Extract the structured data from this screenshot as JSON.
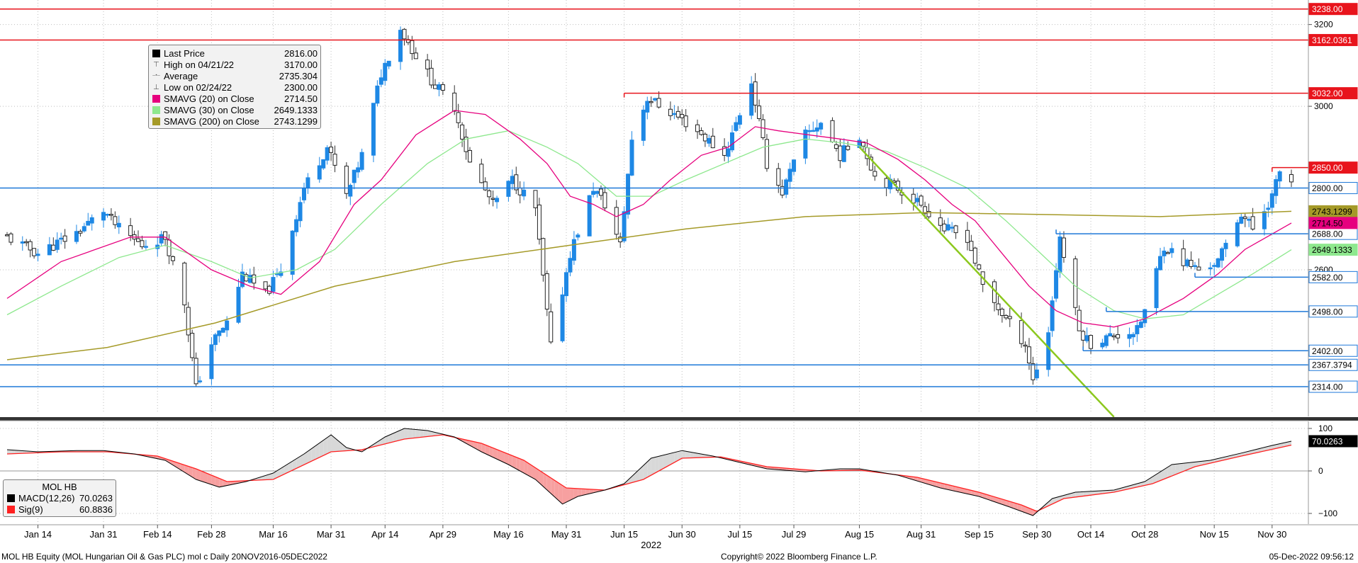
{
  "colors": {
    "bullish": "#1e88e5",
    "bearish_outline": "#222222",
    "sma20": "#e6007e",
    "sma30": "#8ee88e",
    "sma200": "#a59a28",
    "resistance": "#e8141c",
    "support": "#1e78d8",
    "trendline": "#8cc81e",
    "macd": "#000000",
    "signal": "#ff2020",
    "fill_up": "#d8d8d8",
    "fill_down": "#f7a0a0"
  },
  "chart_data": [
    {
      "type": "candlestick",
      "panel": "price",
      "ylim": [
        2250,
        3260
      ],
      "x_range": [
        "2022-01-06",
        "2022-12-05"
      ],
      "x_tick_labels": [
        "Jan 14",
        "Jan 31",
        "Feb 14",
        "Feb 28",
        "Mar 16",
        "Mar 31",
        "Apr 14",
        "Apr 29",
        "May 16",
        "May 31",
        "Jun 15",
        "Jun 30",
        "Jul 15",
        "Jul 29",
        "Aug 15",
        "Aug 31",
        "Sep 15",
        "Sep 30",
        "Oct 14",
        "Oct 28",
        "Nov 15",
        "Nov 30"
      ],
      "x_tick_dates": [
        "2022-01-14",
        "2022-01-31",
        "2022-02-14",
        "2022-02-28",
        "2022-03-16",
        "2022-03-31",
        "2022-04-14",
        "2022-04-29",
        "2022-05-16",
        "2022-05-31",
        "2022-06-15",
        "2022-06-30",
        "2022-07-15",
        "2022-07-29",
        "2022-08-15",
        "2022-08-31",
        "2022-09-15",
        "2022-09-30",
        "2022-10-14",
        "2022-10-28",
        "2022-11-15",
        "2022-11-30"
      ],
      "year_label": "2022",
      "y_tick_values": [
        3200,
        3000,
        2600
      ],
      "y_tick_labels": [
        "3200",
        "3000",
        "2600"
      ],
      "close_anchors": [
        [
          "2022-01-06",
          2680
        ],
        [
          "2022-01-14",
          2640
        ],
        [
          "2022-01-24",
          2690
        ],
        [
          "2022-01-31",
          2745
        ],
        [
          "2022-02-04",
          2700
        ],
        [
          "2022-02-10",
          2660
        ],
        [
          "2022-02-16",
          2680
        ],
        [
          "2022-02-21",
          2520
        ],
        [
          "2022-02-24",
          2310
        ],
        [
          "2022-02-28",
          2420
        ],
        [
          "2022-03-04",
          2470
        ],
        [
          "2022-03-08",
          2590
        ],
        [
          "2022-03-14",
          2540
        ],
        [
          "2022-03-18",
          2600
        ],
        [
          "2022-03-24",
          2800
        ],
        [
          "2022-03-30",
          2900
        ],
        [
          "2022-04-04",
          2780
        ],
        [
          "2022-04-08",
          2880
        ],
        [
          "2022-04-13",
          3080
        ],
        [
          "2022-04-18",
          3190
        ],
        [
          "2022-04-21",
          3140
        ],
        [
          "2022-04-27",
          3050
        ],
        [
          "2022-05-02",
          3000
        ],
        [
          "2022-05-06",
          2860
        ],
        [
          "2022-05-12",
          2760
        ],
        [
          "2022-05-17",
          2820
        ],
        [
          "2022-05-23",
          2750
        ],
        [
          "2022-05-27",
          2410
        ],
        [
          "2022-06-01",
          2640
        ],
        [
          "2022-06-07",
          2800
        ],
        [
          "2022-06-10",
          2760
        ],
        [
          "2022-06-14",
          2660
        ],
        [
          "2022-06-17",
          2920
        ],
        [
          "2022-06-21",
          3020
        ],
        [
          "2022-06-28",
          2980
        ],
        [
          "2022-07-04",
          2940
        ],
        [
          "2022-07-11",
          2880
        ],
        [
          "2022-07-18",
          3060
        ],
        [
          "2022-07-22",
          2860
        ],
        [
          "2022-07-26",
          2790
        ],
        [
          "2022-08-01",
          2930
        ],
        [
          "2022-08-05",
          2960
        ],
        [
          "2022-08-10",
          2880
        ],
        [
          "2022-08-15",
          2930
        ],
        [
          "2022-08-19",
          2830
        ],
        [
          "2022-08-25",
          2800
        ],
        [
          "2022-08-31",
          2760
        ],
        [
          "2022-09-06",
          2700
        ],
        [
          "2022-09-12",
          2680
        ],
        [
          "2022-09-16",
          2560
        ],
        [
          "2022-09-22",
          2480
        ],
        [
          "2022-09-27",
          2420
        ],
        [
          "2022-09-29",
          2330
        ],
        [
          "2022-10-03",
          2450
        ],
        [
          "2022-10-06",
          2680
        ],
        [
          "2022-10-11",
          2450
        ],
        [
          "2022-10-14",
          2420
        ],
        [
          "2022-10-20",
          2440
        ],
        [
          "2022-10-26",
          2450
        ],
        [
          "2022-10-28",
          2500
        ],
        [
          "2022-11-02",
          2660
        ],
        [
          "2022-11-07",
          2620
        ],
        [
          "2022-11-11",
          2600
        ],
        [
          "2022-11-16",
          2620
        ],
        [
          "2022-11-22",
          2740
        ],
        [
          "2022-11-25",
          2700
        ],
        [
          "2022-11-30",
          2780
        ],
        [
          "2022-12-02",
          2840
        ],
        [
          "2022-12-05",
          2816
        ]
      ],
      "sma20": [
        [
          "2022-01-06",
          2530
        ],
        [
          "2022-01-20",
          2620
        ],
        [
          "2022-02-07",
          2680
        ],
        [
          "2022-02-16",
          2680
        ],
        [
          "2022-02-28",
          2600
        ],
        [
          "2022-03-10",
          2560
        ],
        [
          "2022-03-18",
          2540
        ],
        [
          "2022-03-28",
          2620
        ],
        [
          "2022-04-06",
          2760
        ],
        [
          "2022-04-13",
          2820
        ],
        [
          "2022-04-22",
          2930
        ],
        [
          "2022-05-02",
          2990
        ],
        [
          "2022-05-10",
          2980
        ],
        [
          "2022-05-19",
          2920
        ],
        [
          "2022-05-26",
          2860
        ],
        [
          "2022-06-01",
          2780
        ],
        [
          "2022-06-07",
          2760
        ],
        [
          "2022-06-13",
          2730
        ],
        [
          "2022-06-20",
          2760
        ],
        [
          "2022-06-27",
          2820
        ],
        [
          "2022-07-05",
          2880
        ],
        [
          "2022-07-12",
          2900
        ],
        [
          "2022-07-19",
          2950
        ],
        [
          "2022-07-25",
          2940
        ],
        [
          "2022-08-02",
          2930
        ],
        [
          "2022-08-10",
          2920
        ],
        [
          "2022-08-17",
          2910
        ],
        [
          "2022-08-25",
          2870
        ],
        [
          "2022-09-01",
          2820
        ],
        [
          "2022-09-08",
          2760
        ],
        [
          "2022-09-14",
          2720
        ],
        [
          "2022-09-21",
          2640
        ],
        [
          "2022-09-28",
          2560
        ],
        [
          "2022-10-05",
          2500
        ],
        [
          "2022-10-12",
          2470
        ],
        [
          "2022-10-20",
          2460
        ],
        [
          "2022-10-28",
          2480
        ],
        [
          "2022-11-07",
          2530
        ],
        [
          "2022-11-16",
          2590
        ],
        [
          "2022-11-23",
          2650
        ],
        [
          "2022-12-05",
          2714.5
        ]
      ],
      "sma30": [
        [
          "2022-01-06",
          2490
        ],
        [
          "2022-01-20",
          2560
        ],
        [
          "2022-02-04",
          2630
        ],
        [
          "2022-02-16",
          2660
        ],
        [
          "2022-02-28",
          2620
        ],
        [
          "2022-03-10",
          2580
        ],
        [
          "2022-03-22",
          2600
        ],
        [
          "2022-04-01",
          2650
        ],
        [
          "2022-04-13",
          2760
        ],
        [
          "2022-04-25",
          2860
        ],
        [
          "2022-05-05",
          2920
        ],
        [
          "2022-05-16",
          2940
        ],
        [
          "2022-05-26",
          2900
        ],
        [
          "2022-06-03",
          2860
        ],
        [
          "2022-06-13",
          2780
        ],
        [
          "2022-06-22",
          2780
        ],
        [
          "2022-07-01",
          2820
        ],
        [
          "2022-07-11",
          2860
        ],
        [
          "2022-07-21",
          2900
        ],
        [
          "2022-08-01",
          2920
        ],
        [
          "2022-08-11",
          2910
        ],
        [
          "2022-08-22",
          2890
        ],
        [
          "2022-09-01",
          2850
        ],
        [
          "2022-09-12",
          2800
        ],
        [
          "2022-09-22",
          2720
        ],
        [
          "2022-10-01",
          2640
        ],
        [
          "2022-10-10",
          2560
        ],
        [
          "2022-10-20",
          2500
        ],
        [
          "2022-10-28",
          2480
        ],
        [
          "2022-11-07",
          2490
        ],
        [
          "2022-11-16",
          2540
        ],
        [
          "2022-11-25",
          2590
        ],
        [
          "2022-12-05",
          2649.1333
        ]
      ],
      "sma200": [
        [
          "2022-01-06",
          2380
        ],
        [
          "2022-02-01",
          2410
        ],
        [
          "2022-03-01",
          2470
        ],
        [
          "2022-04-01",
          2560
        ],
        [
          "2022-05-02",
          2620
        ],
        [
          "2022-06-01",
          2660
        ],
        [
          "2022-07-01",
          2700
        ],
        [
          "2022-08-01",
          2730
        ],
        [
          "2022-09-01",
          2740
        ],
        [
          "2022-10-03",
          2735
        ],
        [
          "2022-11-01",
          2730
        ],
        [
          "2022-12-05",
          2743.1299
        ]
      ],
      "resistance_levels": [
        {
          "value": 3238.0,
          "label": "3238.00"
        },
        {
          "value": 3162.0361,
          "label": "3162.0361"
        },
        {
          "value": 3032.0,
          "label": "3032.00"
        },
        {
          "value": 2850.0,
          "label": "2850.00"
        }
      ],
      "support_levels": [
        {
          "value": 2800.0,
          "label": "2800.00"
        },
        {
          "value": 2688.0,
          "label": "2688.00"
        },
        {
          "value": 2582.0,
          "label": "2582.00"
        },
        {
          "value": 2498.0,
          "label": "2498.00"
        },
        {
          "value": 2402.0,
          "label": "2402.00"
        },
        {
          "value": 2367.3794,
          "label": "2367.3794"
        },
        {
          "value": 2314.0,
          "label": "2314.00"
        }
      ],
      "indicator_value_labels": [
        {
          "series": "sma200",
          "value": 2743.1299,
          "label": "2743.1299"
        },
        {
          "series": "sma20",
          "value": 2714.5,
          "label": "2714.50"
        },
        {
          "series": "sma30",
          "value": 2649.1333,
          "label": "2649.1333"
        }
      ],
      "trendline": {
        "from": [
          "2022-08-15",
          2900
        ],
        "to": [
          "2022-10-20",
          2240
        ]
      },
      "short_resistance_segments": [
        {
          "from": "2022-06-15",
          "to": "2022-12-05",
          "value": 3032
        },
        {
          "from": "2022-11-30",
          "to": "2022-12-05",
          "value": 2850
        }
      ],
      "short_support_segments": [
        {
          "from": "2022-10-05",
          "to": "2022-12-05",
          "value": 2688
        },
        {
          "from": "2022-11-10",
          "to": "2022-12-05",
          "value": 2582
        },
        {
          "from": "2022-10-18",
          "to": "2022-12-05",
          "value": 2498
        },
        {
          "from": "2022-10-12",
          "to": "2022-12-05",
          "value": 2402
        }
      ]
    },
    {
      "type": "line",
      "panel": "macd",
      "ylim": [
        -125,
        115
      ],
      "y_tick_values": [
        100,
        0,
        -100
      ],
      "y_tick_labels": [
        "100",
        "0",
        "−100"
      ],
      "macd": [
        [
          "2022-01-06",
          50
        ],
        [
          "2022-01-14",
          45
        ],
        [
          "2022-01-24",
          48
        ],
        [
          "2022-01-31",
          48
        ],
        [
          "2022-02-08",
          40
        ],
        [
          "2022-02-16",
          25
        ],
        [
          "2022-02-24",
          -20
        ],
        [
          "2022-03-02",
          -38
        ],
        [
          "2022-03-09",
          -25
        ],
        [
          "2022-03-16",
          -5
        ],
        [
          "2022-03-24",
          40
        ],
        [
          "2022-03-31",
          85
        ],
        [
          "2022-04-04",
          55
        ],
        [
          "2022-04-08",
          45
        ],
        [
          "2022-04-14",
          80
        ],
        [
          "2022-04-19",
          100
        ],
        [
          "2022-04-25",
          95
        ],
        [
          "2022-05-02",
          80
        ],
        [
          "2022-05-09",
          45
        ],
        [
          "2022-05-16",
          15
        ],
        [
          "2022-05-23",
          -20
        ],
        [
          "2022-05-30",
          -78
        ],
        [
          "2022-06-03",
          -60
        ],
        [
          "2022-06-10",
          -45
        ],
        [
          "2022-06-15",
          -30
        ],
        [
          "2022-06-22",
          30
        ],
        [
          "2022-06-30",
          48
        ],
        [
          "2022-07-08",
          35
        ],
        [
          "2022-07-15",
          20
        ],
        [
          "2022-07-22",
          5
        ],
        [
          "2022-08-01",
          -2
        ],
        [
          "2022-08-10",
          5
        ],
        [
          "2022-08-15",
          5
        ],
        [
          "2022-08-25",
          -10
        ],
        [
          "2022-09-05",
          -40
        ],
        [
          "2022-09-15",
          -60
        ],
        [
          "2022-09-23",
          -85
        ],
        [
          "2022-09-29",
          -105
        ],
        [
          "2022-10-04",
          -65
        ],
        [
          "2022-10-10",
          -50
        ],
        [
          "2022-10-20",
          -45
        ],
        [
          "2022-10-28",
          -25
        ],
        [
          "2022-11-04",
          15
        ],
        [
          "2022-11-14",
          25
        ],
        [
          "2022-11-22",
          42
        ],
        [
          "2022-11-30",
          60
        ],
        [
          "2022-12-05",
          70.0263
        ]
      ],
      "signal": [
        [
          "2022-01-06",
          40
        ],
        [
          "2022-01-20",
          45
        ],
        [
          "2022-02-01",
          45
        ],
        [
          "2022-02-14",
          35
        ],
        [
          "2022-02-24",
          5
        ],
        [
          "2022-03-04",
          -25
        ],
        [
          "2022-03-16",
          -20
        ],
        [
          "2022-03-31",
          45
        ],
        [
          "2022-04-08",
          50
        ],
        [
          "2022-04-19",
          75
        ],
        [
          "2022-04-29",
          85
        ],
        [
          "2022-05-09",
          65
        ],
        [
          "2022-05-20",
          25
        ],
        [
          "2022-05-31",
          -40
        ],
        [
          "2022-06-10",
          -45
        ],
        [
          "2022-06-20",
          -20
        ],
        [
          "2022-06-30",
          30
        ],
        [
          "2022-07-10",
          33
        ],
        [
          "2022-07-22",
          10
        ],
        [
          "2022-08-05",
          0
        ],
        [
          "2022-08-15",
          2
        ],
        [
          "2022-08-30",
          -15
        ],
        [
          "2022-09-15",
          -50
        ],
        [
          "2022-09-26",
          -80
        ],
        [
          "2022-09-30",
          -95
        ],
        [
          "2022-10-07",
          -65
        ],
        [
          "2022-10-20",
          -50
        ],
        [
          "2022-10-30",
          -30
        ],
        [
          "2022-11-10",
          10
        ],
        [
          "2022-11-22",
          35
        ],
        [
          "2022-12-05",
          60.8836
        ]
      ],
      "value_labels": [
        {
          "value": 70.0263,
          "label": "70.0263"
        }
      ]
    }
  ],
  "legend_price": {
    "rows": [
      {
        "symbol": "square",
        "color": "#000000",
        "label": "Last Price",
        "value": "2816.00"
      },
      {
        "symbol": "high",
        "color": "",
        "label": "High on 04/21/22",
        "value": "3170.00"
      },
      {
        "symbol": "avg",
        "color": "",
        "label": "Average",
        "value": "2735.304"
      },
      {
        "symbol": "low",
        "color": "",
        "label": "Low on 02/24/22",
        "value": "2300.00"
      },
      {
        "symbol": "square",
        "color": "#e6007e",
        "label": "SMAVG (20)  on Close",
        "value": "2714.50"
      },
      {
        "symbol": "square",
        "color": "#8ee88e",
        "label": "SMAVG (30)  on Close",
        "value": "2649.1333"
      },
      {
        "symbol": "square",
        "color": "#a59a28",
        "label": "SMAVG (200)  on Close",
        "value": "2743.1299"
      }
    ]
  },
  "legend_macd": {
    "title": "MOL HB",
    "rows": [
      {
        "color": "#000000",
        "label": "MACD(12,26)",
        "value": "70.0263"
      },
      {
        "color": "#ff2020",
        "label": "Sig(9)",
        "value": "60.8836"
      }
    ]
  },
  "footer": {
    "security": "MOL HB Equity (MOL Hungarian Oil & Gas PLC) mol c  Daily 20NOV2016-05DEC2022",
    "copyright": "Copyright© 2022 Bloomberg Finance L.P.",
    "timestamp": "05-Dec-2022 09:56:12"
  }
}
